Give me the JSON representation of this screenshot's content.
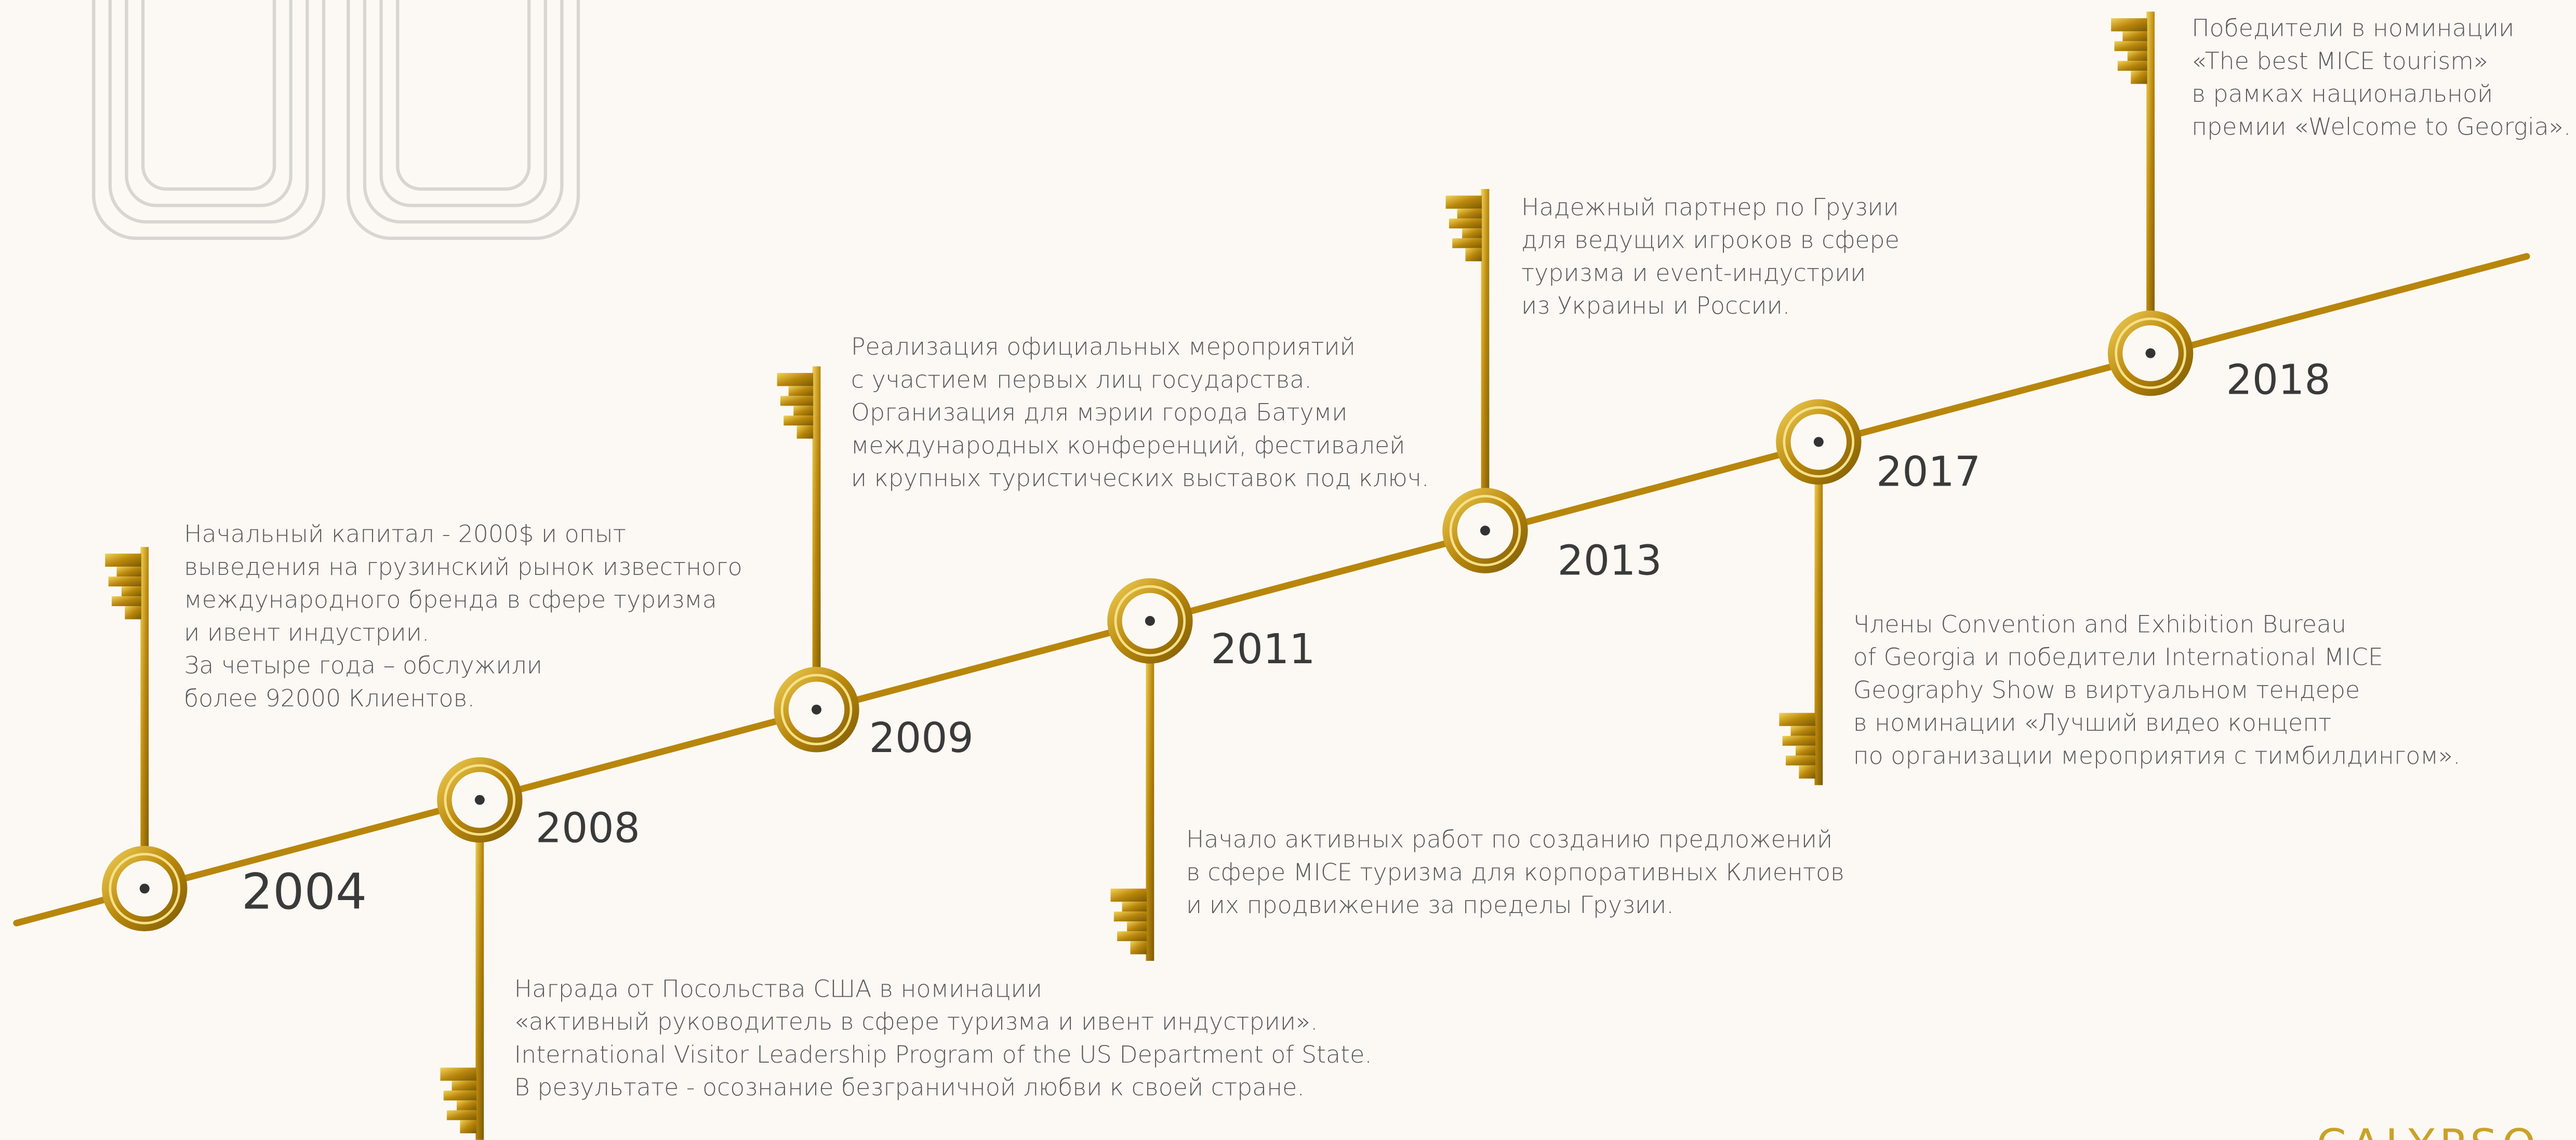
{
  "events": [
    {
      "year": "2004",
      "text": [
        "Начальный капитал - 2000$ и опыт",
        "выведения на грузинский рынок известного",
        "международного бренда в сфере туризма",
        "и ивент индустрии.",
        "За четыре года – обслужили",
        "более 92000 Клиентов."
      ]
    },
    {
      "year": "2008",
      "text": [
        "Награда от Посольства США в номинации",
        "«активный руководитель в сфере туризма и ивент индустрии».",
        "International Visitor Leadership Program of the US Department of State.",
        "В результате - осознание безграничной любви к своей стране."
      ]
    },
    {
      "year": "2009",
      "text": [
        "Реализация официальных мероприятий",
        "с участием первых лиц государства.",
        "Организация для мэрии города Батуми",
        "международных конференций, фестивалей",
        "и крупных туристических выставок под ключ."
      ]
    },
    {
      "year": "2011",
      "text": [
        "Начало активных работ по созданию предложений",
        "в сфере MICE туризма для корпоративных Клиентов",
        "и их продвижение за пределы Грузии."
      ]
    },
    {
      "year": "2013",
      "text": [
        "Надежный партнер по Грузии",
        "для ведущих игроков в сфере",
        "туризма и event-индустрии",
        "из Украины и России."
      ]
    },
    {
      "year": "2017",
      "text": [
        "Члены Convention and Exhibition Bureau",
        "of Georgia и победители International MICE",
        "Geography Show в виртуальном тендере",
        "в номинации «Лучший видео концепт",
        "по организации мероприятия с тимбилдингом»."
      ]
    },
    {
      "year": "2018",
      "text": [
        "Победители в номинации",
        "«The best MICE tourism»",
        "в рамках национальной",
        "премии «Welcome to Georgia»."
      ]
    }
  ],
  "logo": "CALYPSO"
}
